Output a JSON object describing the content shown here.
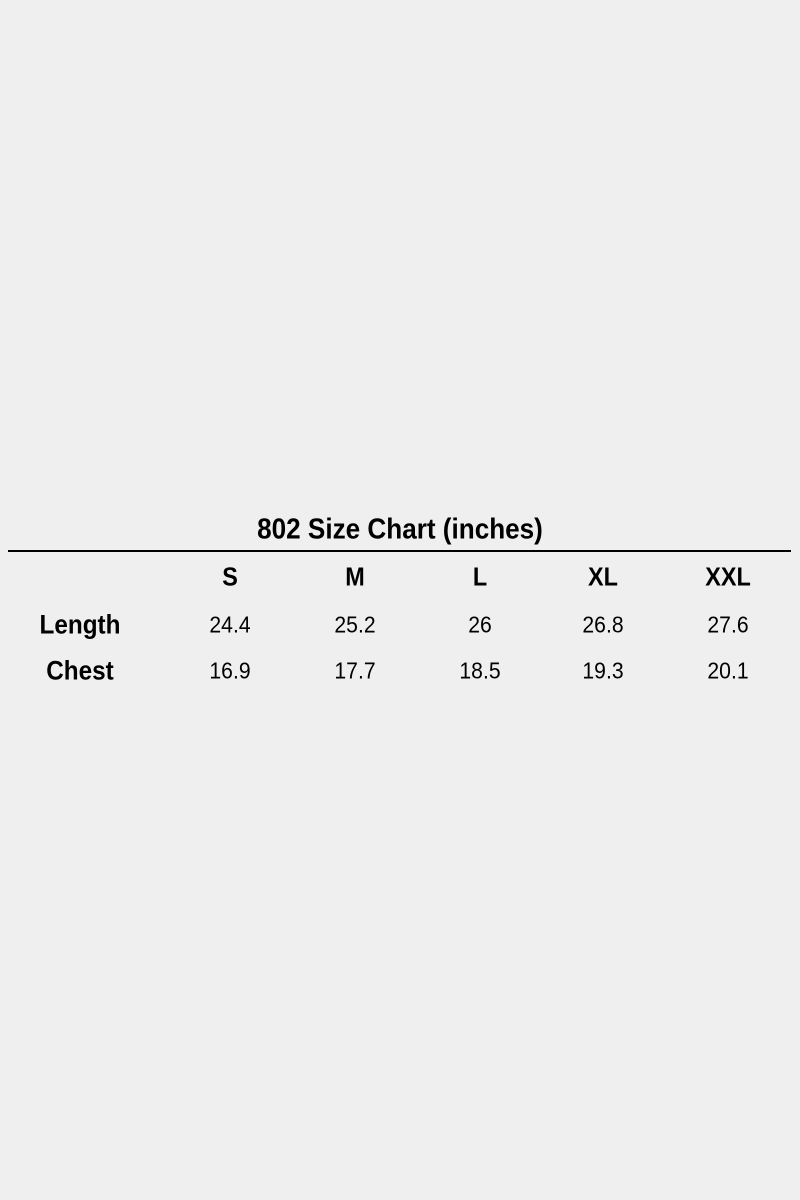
{
  "title": "802 Size Chart (inches)",
  "table": {
    "columns": [
      "S",
      "M",
      "L",
      "XL",
      "XXL"
    ],
    "rows": [
      {
        "label": "Length",
        "values": [
          "24.4",
          "25.2",
          "26",
          "26.8",
          "27.6"
        ]
      },
      {
        "label": "Chest",
        "values": [
          "16.9",
          "17.7",
          "18.5",
          "19.3",
          "20.1"
        ]
      }
    ]
  }
}
